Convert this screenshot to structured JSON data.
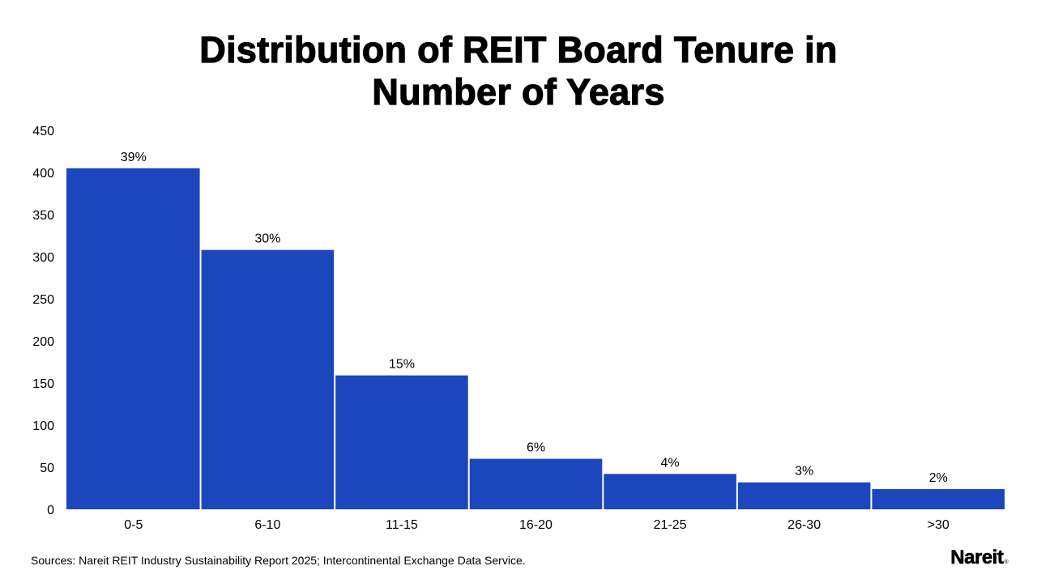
{
  "chart_data": {
    "type": "bar",
    "title": "Distribution of REIT Board Tenure in\nNumber of Years",
    "categories": [
      "0-5",
      "6-10",
      "11-15",
      "16-20",
      "21-25",
      "26-30",
      ">30"
    ],
    "values": [
      405,
      308,
      159,
      60,
      42,
      32,
      24
    ],
    "data_labels": [
      "39%",
      "30%",
      "15%",
      "6%",
      "4%",
      "3%",
      "2%"
    ],
    "xlabel": "",
    "ylabel": "",
    "ylim": [
      0,
      450
    ],
    "yticks": [
      0,
      50,
      100,
      150,
      200,
      250,
      300,
      350,
      400,
      450
    ],
    "grid": false,
    "legend": "none",
    "bar_color": "#1c46bb"
  },
  "footer": {
    "source": "Sources: Nareit REIT Industry Sustainability Report 2025; Intercontinental Exchange Data Service.",
    "logo_text": "Nareit",
    "logo_mark": "®"
  }
}
